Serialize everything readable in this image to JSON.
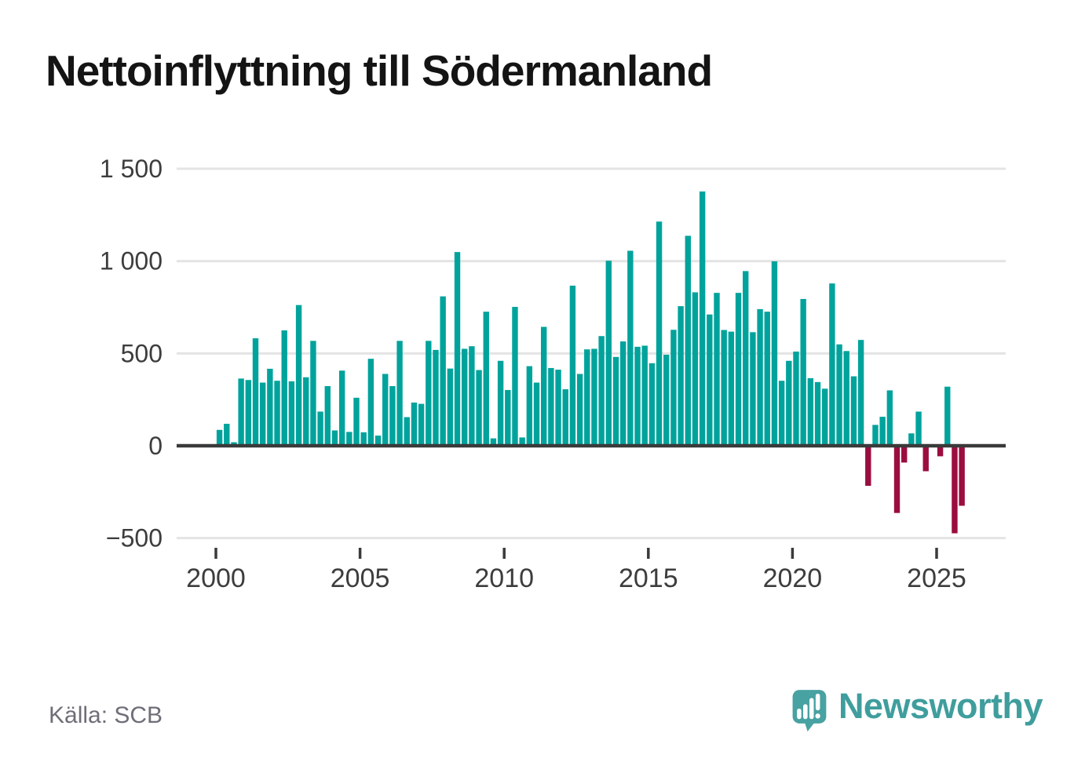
{
  "title": "Nettoinflyttning till Södermanland",
  "source": "Källa: SCB",
  "brand": {
    "name": "Newsworthy"
  },
  "chart_data": {
    "type": "bar",
    "title": "Nettoinflyttning till Södermanland",
    "frequency": "quarterly",
    "start_period": "2000 Q1",
    "end_period": "2025 Q4",
    "values": [
      86,
      119,
      19,
      364,
      356,
      582,
      342,
      417,
      352,
      625,
      349,
      762,
      371,
      568,
      185,
      323,
      83,
      407,
      75,
      260,
      73,
      471,
      55,
      389,
      323,
      568,
      155,
      234,
      227,
      568,
      519,
      809,
      418,
      1049,
      525,
      539,
      410,
      726,
      40,
      460,
      302,
      752,
      45,
      431,
      342,
      644,
      421,
      412,
      306,
      867,
      389,
      522,
      525,
      594,
      1002,
      481,
      565,
      1056,
      536,
      542,
      447,
      1214,
      493,
      628,
      756,
      1137,
      831,
      1377,
      711,
      828,
      627,
      618,
      828,
      946,
      615,
      740,
      726,
      999,
      352,
      460,
      510,
      795,
      366,
      345,
      309,
      879,
      549,
      513,
      376,
      573,
      -217,
      113,
      157,
      300,
      -364,
      -91,
      67,
      185,
      -138,
      0,
      -57,
      320,
      -474,
      -325
    ],
    "x_tick_labels": [
      "2000",
      "2005",
      "2010",
      "2015",
      "2020",
      "2025"
    ],
    "y_ticks": [
      -500,
      0,
      500,
      1000,
      1500
    ],
    "y_tick_labels": [
      "−500",
      "0",
      "500",
      "1 000",
      "1 500"
    ],
    "ylim": [
      -500,
      1500
    ],
    "grid": "horizontal",
    "legend": "none",
    "positive_color": "#00a39c",
    "negative_color": "#9b0d3f",
    "grid_color": "#e4e4e4",
    "axis_color": "#3a3a3a",
    "tick_text_color": "#3d3d3d"
  }
}
